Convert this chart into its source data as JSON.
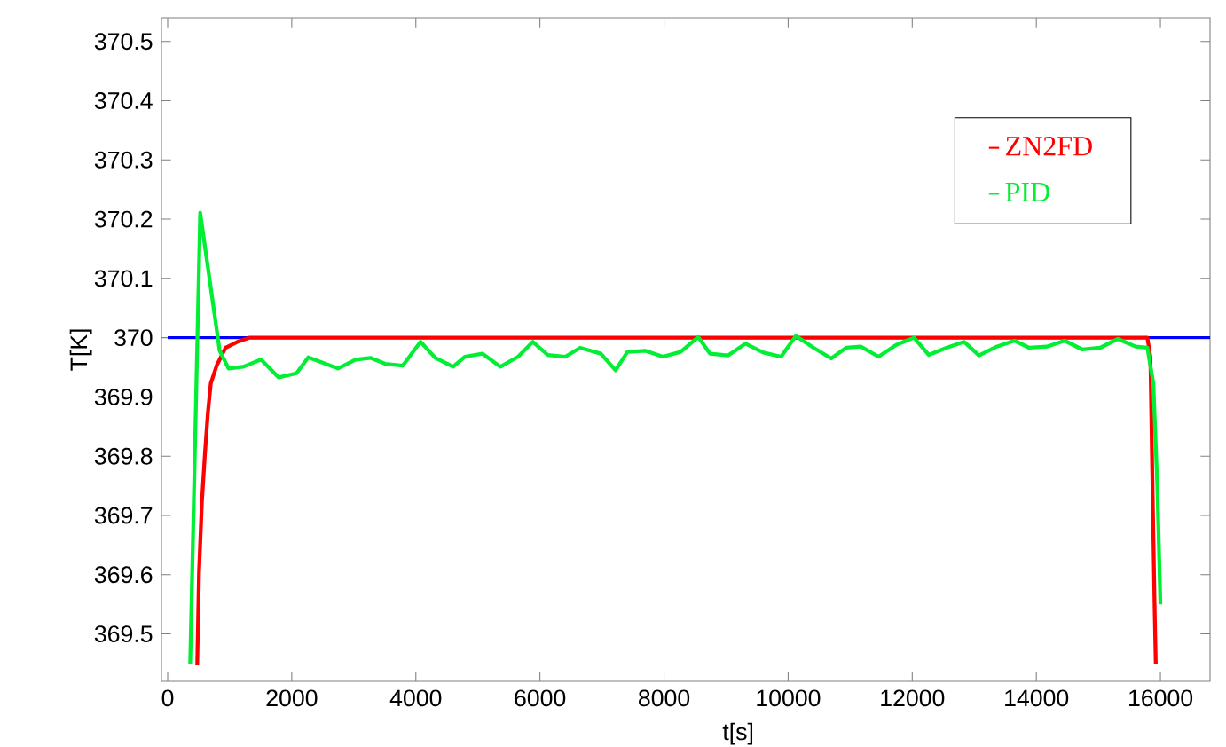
{
  "chart_data": {
    "type": "line",
    "xlabel": "t[s]",
    "ylabel": "T[K]",
    "xlim": [
      -100,
      16800
    ],
    "ylim": [
      369.42,
      370.54
    ],
    "xticks": [
      0,
      2000,
      4000,
      6000,
      8000,
      10000,
      12000,
      14000,
      16000
    ],
    "yticks": [
      369.5,
      369.6,
      369.7,
      369.8,
      369.9,
      370,
      370.1,
      370.2,
      370.3,
      370.4,
      370.5
    ],
    "grid": false,
    "legend": "top right",
    "marker": "none",
    "line_style": "solid",
    "ref_lines": [
      {
        "axis": "y",
        "value": 370,
        "color": "#0000ff"
      }
    ],
    "series": [
      {
        "name": "ZN2FD",
        "color": "#ff0000",
        "x": [
          476,
          505,
          552,
          600,
          648,
          695,
          790,
          933,
          1124,
          1314,
          15790,
          15838,
          15867,
          15905,
          15925
        ],
        "values": [
          369.447,
          369.603,
          369.723,
          369.803,
          369.873,
          369.923,
          369.953,
          369.983,
          369.993,
          370.0,
          370.0,
          369.968,
          369.783,
          369.553,
          369.45
        ]
      },
      {
        "name": "PID",
        "color": "#00ee33",
        "x": [
          363,
          524,
          838,
          981,
          1219,
          1505,
          1790,
          2076,
          2267,
          2743,
          3029,
          3267,
          3505,
          3790,
          4076,
          4314,
          4600,
          4790,
          5076,
          5362,
          5648,
          5886,
          6124,
          6410,
          6648,
          6981,
          7219,
          7410,
          7695,
          7981,
          8267,
          8552,
          8743,
          9029,
          9314,
          9600,
          9886,
          10124,
          10410,
          10695,
          10934,
          11171,
          11457,
          11743,
          12029,
          12267,
          12552,
          12838,
          13076,
          13362,
          13648,
          13886,
          14171,
          14457,
          14743,
          15029,
          15314,
          15600,
          15790,
          15886,
          15950,
          16000
        ],
        "values": [
          369.45,
          370.211,
          369.978,
          369.948,
          369.951,
          369.963,
          369.933,
          369.94,
          369.967,
          369.948,
          369.963,
          369.966,
          369.956,
          369.953,
          369.993,
          369.966,
          369.951,
          369.968,
          369.973,
          369.951,
          369.968,
          369.993,
          369.971,
          369.968,
          369.983,
          369.973,
          369.945,
          369.976,
          369.978,
          369.968,
          369.976,
          370.001,
          369.973,
          369.97,
          369.99,
          369.975,
          369.968,
          370.003,
          369.983,
          369.965,
          369.983,
          369.985,
          369.968,
          369.988,
          370.0,
          369.971,
          369.983,
          369.993,
          369.97,
          369.985,
          369.995,
          369.983,
          369.985,
          369.995,
          369.98,
          369.983,
          369.998,
          369.985,
          369.983,
          369.923,
          369.75,
          369.55
        ]
      }
    ]
  }
}
